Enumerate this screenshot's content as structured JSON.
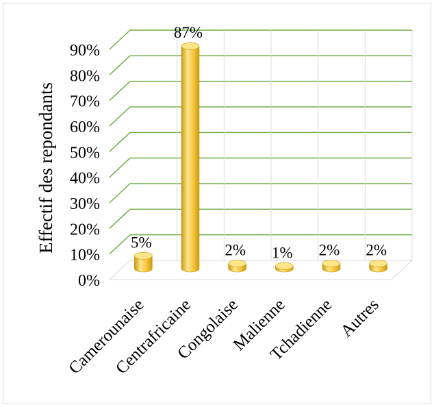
{
  "chart_data": {
    "type": "bar",
    "categories": [
      "Camerounaise",
      "Centrafricaine",
      "Congolaise",
      "Malienne",
      "Tchadienne",
      "Autres"
    ],
    "values": [
      5,
      87,
      2,
      1,
      2,
      2
    ],
    "data_labels": [
      "5%",
      "87%",
      "2%",
      "1%",
      "2%",
      "2%"
    ],
    "ylabel": "Effectif des repondants",
    "ylim": [
      0,
      90
    ],
    "yticks": [
      "0%",
      "10%",
      "20%",
      "30%",
      "40%",
      "50%",
      "60%",
      "70%",
      "80%",
      "90%"
    ],
    "grid": true,
    "colors": {
      "bar_main": "#f5c33a",
      "bar_light": "#fde68a",
      "bar_dark": "#c99a12",
      "gridline": "#70ad47",
      "floor": "#d9d9d9"
    }
  }
}
